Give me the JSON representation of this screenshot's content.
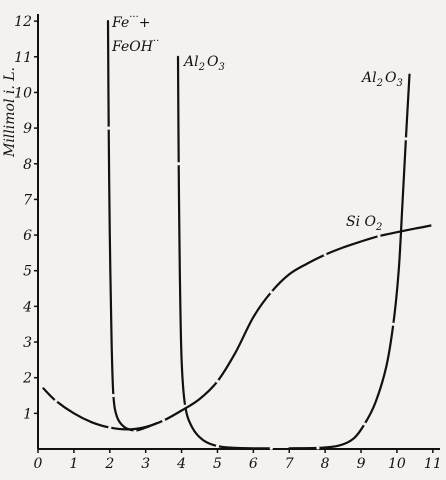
{
  "chart_data": {
    "type": "line",
    "title": "",
    "xlabel": "",
    "ylabel": "Millimol i. L.",
    "xlim": [
      0,
      11.2
    ],
    "ylim": [
      0,
      12
    ],
    "xticks": [
      "0",
      "1",
      "2",
      "3",
      "4",
      "5",
      "6",
      "7",
      "8",
      "9",
      "10",
      "11"
    ],
    "yticks": [
      "1",
      "2",
      "3",
      "4",
      "5",
      "6",
      "7",
      "8",
      "9",
      "10",
      "11",
      "12"
    ],
    "grid": false,
    "series": [
      {
        "name": "Fe···+ FeOH··",
        "x": [
          1.95,
          1.97,
          2.0,
          2.05,
          2.1,
          2.2,
          2.4,
          2.7,
          3.0,
          3.3
        ],
        "y": [
          12.0,
          9.0,
          6.0,
          3.0,
          1.5,
          0.9,
          0.62,
          0.52,
          0.6,
          0.72
        ]
      },
      {
        "name": "Al₂O₃",
        "x": [
          3.9,
          3.92,
          3.95,
          4.0,
          4.1,
          4.3,
          4.6,
          5.0,
          5.5,
          6.0,
          6.5
        ],
        "y": [
          11.0,
          8.0,
          5.0,
          2.5,
          1.2,
          0.6,
          0.25,
          0.08,
          0.03,
          0.02,
          0.02
        ]
      },
      {
        "name": "Al₂O₃",
        "x": [
          7.0,
          7.8,
          8.4,
          8.8,
          9.1,
          9.4,
          9.7,
          9.9,
          10.05,
          10.15,
          10.25,
          10.35
        ],
        "y": [
          0.02,
          0.03,
          0.1,
          0.3,
          0.7,
          1.3,
          2.3,
          3.5,
          5.0,
          6.8,
          8.7,
          10.5
        ]
      },
      {
        "name": "SiO₂",
        "x": [
          0.15,
          0.5,
          1.0,
          1.5,
          2.0,
          2.5,
          3.0,
          3.5,
          4.0,
          4.5,
          5.0,
          5.5,
          6.0,
          6.5,
          7.0,
          7.5,
          8.0,
          8.5,
          9.0,
          9.5,
          10.0,
          10.5,
          11.0
        ],
        "y": [
          1.7,
          1.35,
          1.0,
          0.75,
          0.6,
          0.55,
          0.62,
          0.8,
          1.08,
          1.4,
          1.9,
          2.7,
          3.7,
          4.4,
          4.9,
          5.2,
          5.45,
          5.65,
          5.82,
          5.97,
          6.08,
          6.18,
          6.28
        ]
      }
    ],
    "annotations": [
      {
        "id": "fe",
        "line1": "Fe",
        "sup1": "···",
        "plus": "+",
        "line2": "FeOH",
        "sup2": "··"
      },
      {
        "id": "al-left",
        "text": "Al",
        "sub": "2",
        "text2": "O",
        "sub2": "3"
      },
      {
        "id": "al-right",
        "text": "Al",
        "sub": "2",
        "text2": "O",
        "sub2": "3"
      },
      {
        "id": "si",
        "text": "Si O",
        "sub": "2"
      }
    ]
  }
}
